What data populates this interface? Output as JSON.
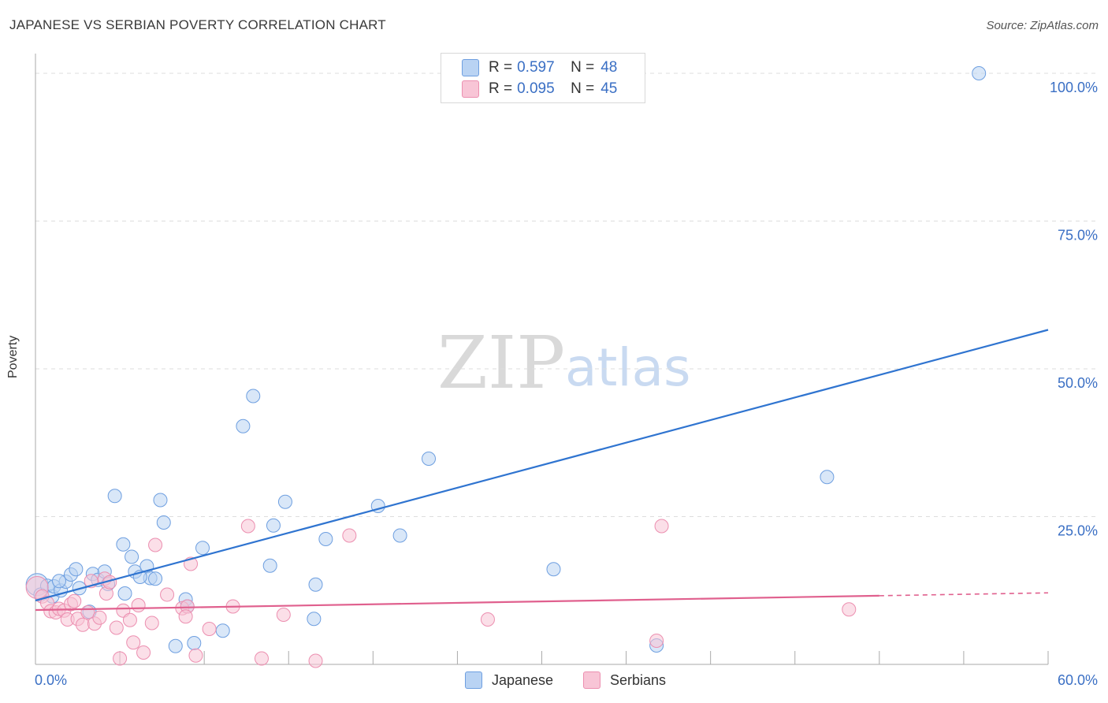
{
  "header": {
    "title": "JAPANESE VS SERBIAN POVERTY CORRELATION CHART",
    "source": "Source: ZipAtlas.com"
  },
  "colors": {
    "japanese_fill": "#b9d3f3",
    "japanese_stroke": "#6e9fe0",
    "japanese_line": "#2f74d0",
    "serbian_fill": "#f8c5d6",
    "serbian_stroke": "#ec8fb0",
    "serbian_line": "#e0608e",
    "tick_label": "#3a6fc4",
    "grid": "#dddddd"
  },
  "legend": {
    "japanese": {
      "r_label": "R =",
      "r_value": "0.597",
      "n_label": "N =",
      "n_value": "48"
    },
    "serbian": {
      "r_label": "R =",
      "r_value": "0.095",
      "n_label": "N =",
      "n_value": "45"
    }
  },
  "bottom_legend": {
    "japanese": "Japanese",
    "serbian": "Serbians"
  },
  "watermark": {
    "zip": "ZIP",
    "atlas": "atlas"
  },
  "chart_data": {
    "type": "scatter",
    "title": "JAPANESE VS SERBIAN POVERTY CORRELATION CHART",
    "xlabel": "",
    "ylabel": "Poverty",
    "xlim": [
      0,
      60
    ],
    "ylim": [
      0,
      102
    ],
    "x_tick_labels": [
      "0.0%",
      "60.0%"
    ],
    "y_ticks": [
      25,
      50,
      75,
      100
    ],
    "y_tick_labels": [
      "25.0%",
      "50.0%",
      "75.0%",
      "100.0%"
    ],
    "grid": true,
    "legend_position": "top-center",
    "series": [
      {
        "name": "Japanese",
        "R": 0.597,
        "N": 48,
        "trend": {
          "x": [
            0,
            60
          ],
          "y": [
            10.8,
            56.6
          ],
          "dashed_from": null
        },
        "points": [
          [
            0.1,
            13.5
          ],
          [
            0.3,
            11.8
          ],
          [
            0.7,
            13.3
          ],
          [
            1.0,
            11.5
          ],
          [
            1.1,
            13.2
          ],
          [
            1.5,
            12.5
          ],
          [
            1.8,
            14.0
          ],
          [
            2.1,
            15.2
          ],
          [
            2.4,
            16.1
          ],
          [
            2.6,
            12.9
          ],
          [
            3.2,
            8.9
          ],
          [
            3.4,
            15.3
          ],
          [
            3.7,
            14.3
          ],
          [
            4.1,
            15.7
          ],
          [
            4.3,
            13.6
          ],
          [
            4.7,
            28.5
          ],
          [
            5.2,
            20.3
          ],
          [
            5.3,
            12.0
          ],
          [
            5.7,
            18.2
          ],
          [
            5.9,
            15.7
          ],
          [
            6.6,
            16.6
          ],
          [
            6.8,
            14.6
          ],
          [
            7.1,
            14.5
          ],
          [
            7.4,
            27.8
          ],
          [
            7.6,
            24.0
          ],
          [
            8.3,
            3.1
          ],
          [
            8.9,
            11.0
          ],
          [
            9.0,
            9.8
          ],
          [
            9.4,
            3.6
          ],
          [
            9.9,
            19.7
          ],
          [
            11.1,
            5.7
          ],
          [
            12.3,
            40.3
          ],
          [
            12.9,
            45.4
          ],
          [
            13.9,
            16.7
          ],
          [
            14.1,
            23.5
          ],
          [
            14.8,
            27.5
          ],
          [
            16.5,
            7.7
          ],
          [
            16.6,
            13.5
          ],
          [
            17.2,
            21.2
          ],
          [
            20.3,
            26.8
          ],
          [
            21.6,
            21.8
          ],
          [
            23.3,
            34.8
          ],
          [
            30.7,
            16.1
          ],
          [
            36.8,
            3.2
          ],
          [
            46.9,
            31.7
          ],
          [
            55.9,
            100.0
          ],
          [
            1.4,
            14.1
          ],
          [
            6.2,
            14.8
          ]
        ]
      },
      {
        "name": "Serbians",
        "R": 0.095,
        "N": 45,
        "trend": {
          "x": [
            0,
            60
          ],
          "y": [
            9.2,
            12.1
          ],
          "dashed_from": 50
        },
        "points": [
          [
            0.1,
            13.0
          ],
          [
            0.4,
            11.5
          ],
          [
            0.7,
            10.4
          ],
          [
            0.9,
            9.0
          ],
          [
            1.2,
            8.8
          ],
          [
            1.4,
            9.4
          ],
          [
            1.7,
            9.1
          ],
          [
            1.9,
            7.6
          ],
          [
            2.1,
            10.2
          ],
          [
            2.3,
            10.7
          ],
          [
            2.5,
            7.7
          ],
          [
            2.8,
            6.7
          ],
          [
            3.1,
            8.8
          ],
          [
            3.3,
            14.1
          ],
          [
            3.5,
            6.9
          ],
          [
            3.8,
            7.9
          ],
          [
            4.1,
            14.5
          ],
          [
            4.2,
            12.0
          ],
          [
            4.4,
            13.9
          ],
          [
            4.8,
            6.2
          ],
          [
            5.0,
            1.0
          ],
          [
            5.2,
            9.1
          ],
          [
            5.6,
            7.5
          ],
          [
            5.8,
            3.7
          ],
          [
            6.1,
            10.0
          ],
          [
            6.4,
            2.0
          ],
          [
            6.9,
            7.0
          ],
          [
            7.1,
            20.2
          ],
          [
            7.8,
            11.8
          ],
          [
            8.7,
            9.5
          ],
          [
            9.0,
            9.8
          ],
          [
            9.2,
            17.0
          ],
          [
            9.5,
            1.5
          ],
          [
            10.3,
            6.0
          ],
          [
            11.7,
            9.8
          ],
          [
            12.6,
            23.4
          ],
          [
            13.4,
            1.0
          ],
          [
            14.7,
            8.4
          ],
          [
            16.6,
            0.6
          ],
          [
            18.6,
            21.8
          ],
          [
            26.8,
            7.6
          ],
          [
            36.8,
            4.0
          ],
          [
            37.1,
            23.4
          ],
          [
            48.2,
            9.3
          ],
          [
            8.9,
            8.1
          ]
        ]
      }
    ]
  }
}
